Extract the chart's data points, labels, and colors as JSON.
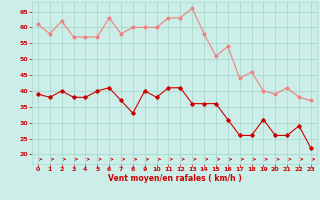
{
  "x": [
    0,
    1,
    2,
    3,
    4,
    5,
    6,
    7,
    8,
    9,
    10,
    11,
    12,
    13,
    14,
    15,
    16,
    17,
    18,
    19,
    20,
    21,
    22,
    23
  ],
  "rafales": [
    61,
    58,
    62,
    57,
    57,
    57,
    63,
    58,
    60,
    60,
    60,
    63,
    63,
    66,
    58,
    51,
    54,
    44,
    46,
    40,
    39,
    41,
    38,
    37
  ],
  "moyen": [
    39,
    38,
    40,
    38,
    38,
    40,
    41,
    37,
    33,
    40,
    38,
    41,
    41,
    36,
    36,
    36,
    31,
    26,
    26,
    31,
    26,
    26,
    29,
    22
  ],
  "bg_color": "#cceee8",
  "line_color_rafales": "#f08080",
  "line_color_moyen": "#cc0000",
  "grid_color": "#aad8d0",
  "tick_color": "#cc0000",
  "label_color": "#cc0000",
  "xlabel": "Vent moyen/en rafales ( km/h )",
  "ylim": [
    17,
    68
  ],
  "yticks": [
    20,
    25,
    30,
    35,
    40,
    45,
    50,
    55,
    60,
    65
  ],
  "xticks": [
    0,
    1,
    2,
    3,
    4,
    5,
    6,
    7,
    8,
    9,
    10,
    11,
    12,
    13,
    14,
    15,
    16,
    17,
    18,
    19,
    20,
    21,
    22,
    23
  ],
  "xlim": [
    -0.5,
    23.5
  ]
}
